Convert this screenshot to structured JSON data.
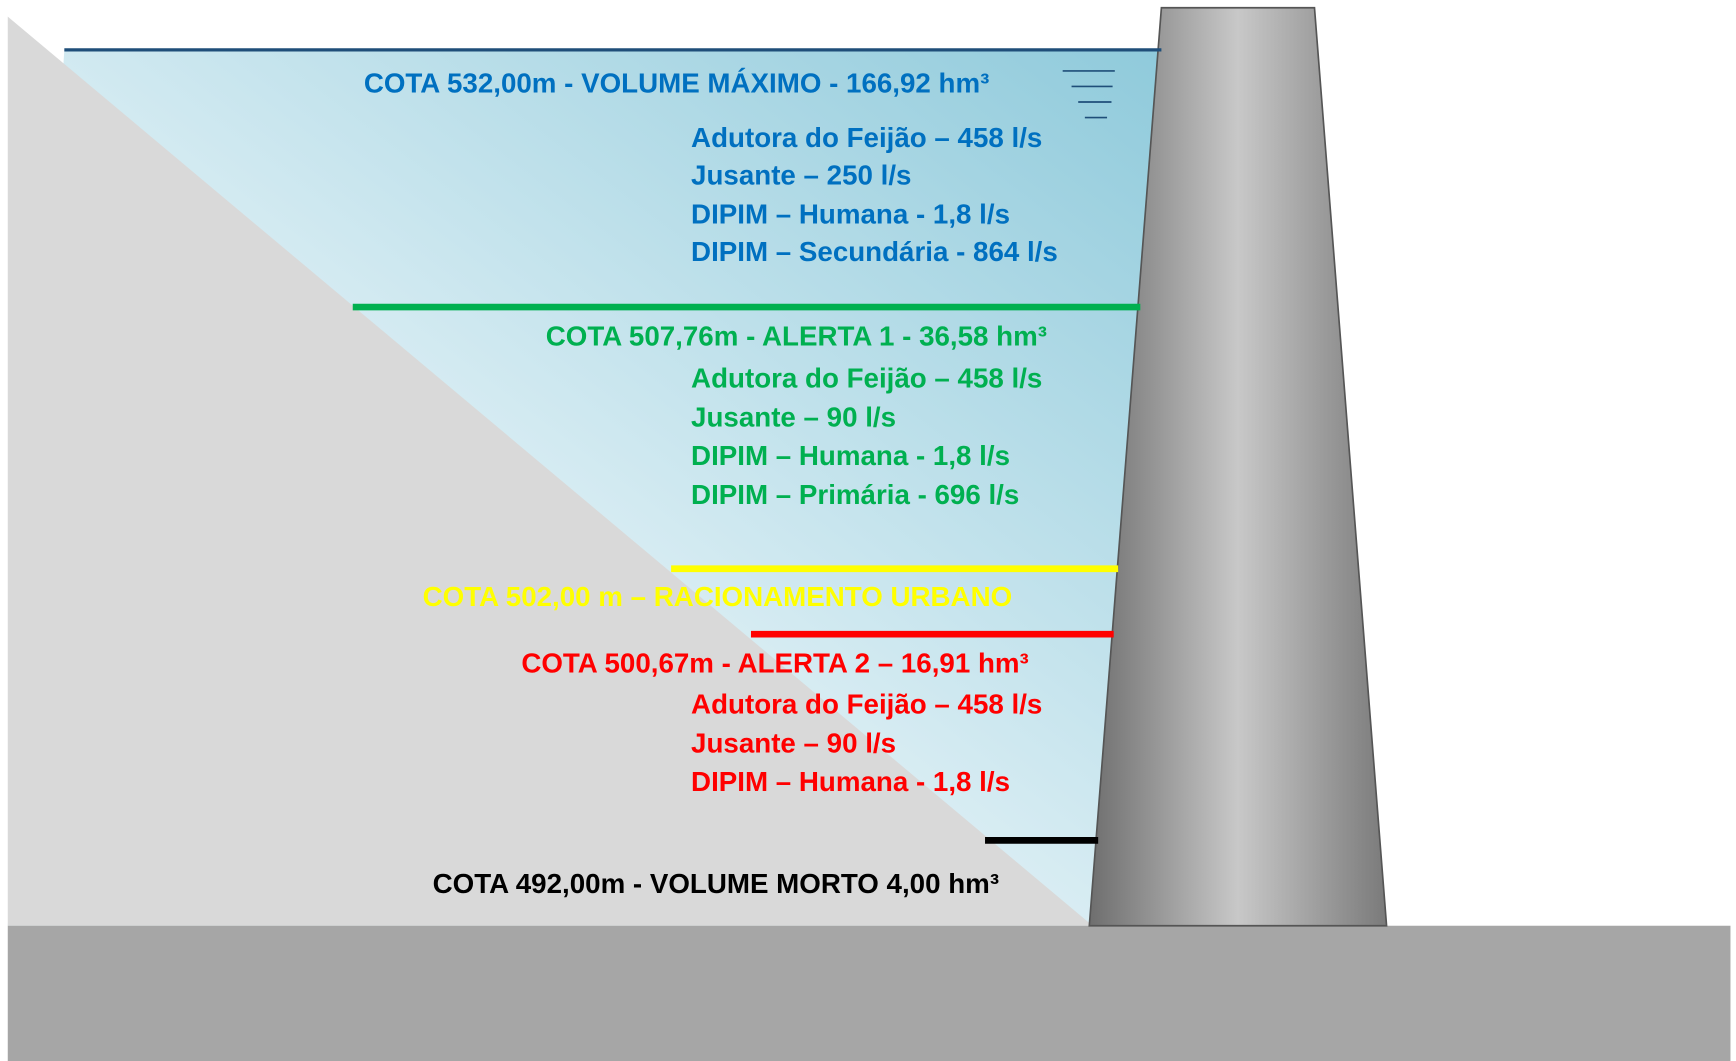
{
  "levels": [
    {
      "title": "COTA 532,00m - VOLUME MÁXIMO - 166,92 hm³",
      "items": [
        "Adutora do Feijão – 458 l/s",
        "Jusante – 250 l/s",
        "DIPIM – Humana - 1,8 l/s",
        "DIPIM – Secundária - 864 l/s"
      ]
    },
    {
      "title": "COTA 507,76m - ALERTA 1 - 36,58 hm³",
      "items": [
        "Adutora do Feijão – 458 l/s",
        "Jusante – 90 l/s",
        "DIPIM – Humana - 1,8 l/s",
        "DIPIM – Primária - 696 l/s"
      ]
    },
    {
      "title": "COTA 502,00 m – RACIONAMENTO URBANO",
      "items": []
    },
    {
      "title": "COTA 500,67m - ALERTA 2 – 16,91 hm³",
      "items": [
        "Adutora do Feijão – 458 l/s",
        "Jusante – 90 l/s",
        "DIPIM – Humana - 1,8 l/s"
      ]
    },
    {
      "title": "COTA 492,00m - VOLUME MORTO 4,00 hm³",
      "items": []
    }
  ]
}
